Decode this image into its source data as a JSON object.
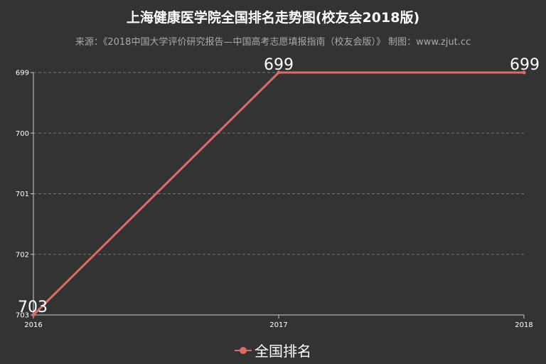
{
  "colors": {
    "background": "#333333",
    "series": "#dd6b66",
    "grid": "#777777",
    "axis": "#cccccc"
  },
  "chart_data": {
    "type": "line",
    "title": "上海健康医学院全国排名走势图(校友会2018版)",
    "subtitle": "来源：《2018中国大学评价研究报告—中国高考志愿填报指南（校友会版）》 制图：www.zjut.cc",
    "x": [
      "2016",
      "2017",
      "2018"
    ],
    "series": [
      {
        "name": "全国排名",
        "values": [
          703,
          699,
          699
        ]
      }
    ],
    "yticks": [
      "699",
      "700",
      "701",
      "702",
      "703"
    ],
    "ylim": [
      699,
      703
    ],
    "y_inverted": true,
    "grid": true,
    "legend": "bottom-center"
  }
}
